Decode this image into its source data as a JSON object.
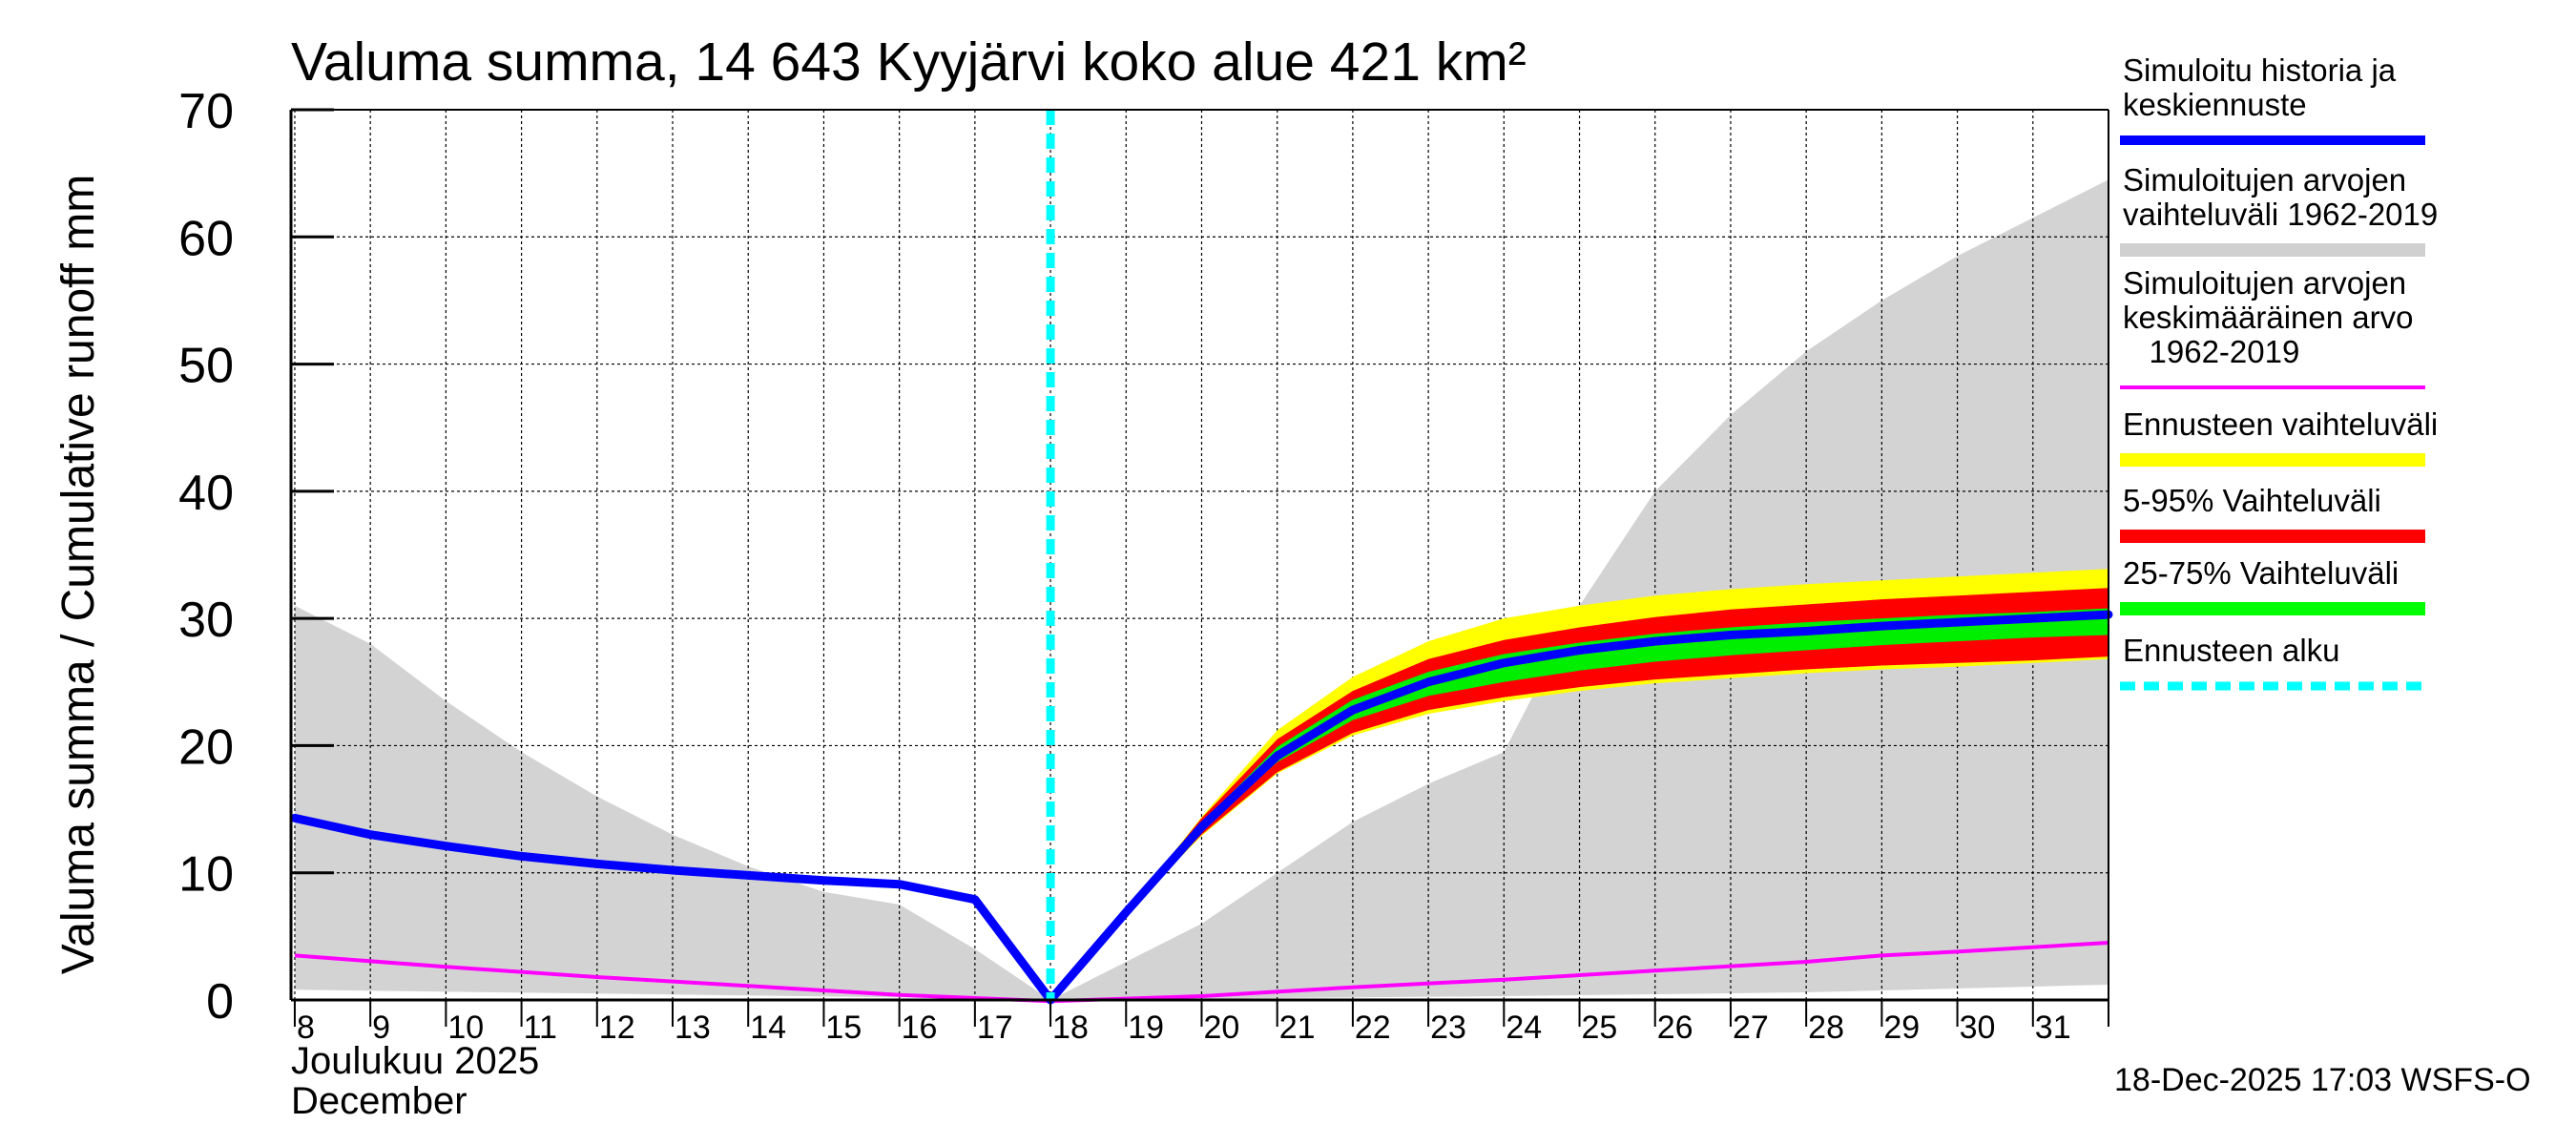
{
  "chart_data": {
    "type": "area",
    "title": "Valuma summa, 14 643 Kyyjärvi koko alue 421 km²",
    "ylabel": "Valuma summa / Cumulative runoff    mm",
    "ylim": [
      0,
      70
    ],
    "yticks": [
      0,
      10,
      20,
      30,
      40,
      50,
      60,
      70
    ],
    "xlim": [
      7.95,
      32
    ],
    "xticks": [
      8,
      9,
      10,
      11,
      12,
      13,
      14,
      15,
      16,
      17,
      18,
      19,
      20,
      21,
      22,
      23,
      24,
      25,
      26,
      27,
      28,
      29,
      30,
      31
    ],
    "xlabel_fi": "Joulukuu  2025",
    "xlabel_en": "December",
    "grid": true,
    "forecast_start_day": 18,
    "timestamp": "18-Dec-2025 17:03 WSFS-O",
    "series": {
      "sim_range_upper": {
        "x": [
          8,
          9,
          10,
          11,
          12,
          13,
          14,
          15,
          16,
          17,
          18,
          19,
          20,
          21,
          22,
          23,
          24,
          25,
          26,
          27,
          28,
          29,
          30,
          31,
          32
        ],
        "y": [
          31,
          28,
          23.5,
          19.5,
          16,
          13,
          10.5,
          8.5,
          7.5,
          4,
          0,
          3,
          6,
          10,
          14,
          17,
          19.5,
          31,
          40,
          46,
          51,
          55,
          58.5,
          61.5,
          64.5
        ]
      },
      "sim_range_lower": {
        "x": [
          8,
          12,
          16,
          18,
          20,
          24,
          28,
          32
        ],
        "y": [
          0.8,
          0.5,
          0.2,
          0,
          0.1,
          0.3,
          0.6,
          1.2
        ]
      },
      "sim_mean": {
        "x": [
          8,
          10,
          12,
          14,
          16,
          18,
          20,
          22,
          24,
          26,
          28,
          29,
          30,
          32
        ],
        "y": [
          3.5,
          2.6,
          1.8,
          1.1,
          0.4,
          -0.1,
          0.3,
          1.0,
          1.6,
          2.3,
          3.0,
          3.5,
          3.8,
          4.5
        ]
      },
      "history_and_forecast": {
        "x": [
          8,
          9,
          10,
          11,
          12,
          13,
          14,
          15,
          16,
          17,
          18,
          19,
          20,
          21,
          22,
          23,
          24,
          25,
          26,
          27,
          28,
          29,
          30,
          31,
          32
        ],
        "y": [
          14.3,
          13.0,
          12.1,
          11.3,
          10.7,
          10.2,
          9.8,
          9.4,
          9.1,
          7.9,
          0,
          6.9,
          13.6,
          19.2,
          22.8,
          25.0,
          26.5,
          27.5,
          28.2,
          28.7,
          29.0,
          29.4,
          29.7,
          30.0,
          30.3
        ]
      },
      "forecast_range": {
        "x": [
          19,
          20,
          21,
          22,
          23,
          24,
          25,
          26,
          27,
          28,
          29,
          30,
          31,
          32
        ],
        "lower": [
          6.9,
          12.9,
          17.8,
          20.8,
          22.5,
          23.5,
          24.3,
          24.9,
          25.3,
          25.7,
          26.0,
          26.2,
          26.5,
          26.8
        ],
        "upper": [
          6.9,
          14.4,
          21.2,
          25.4,
          28.2,
          30.0,
          31.0,
          31.8,
          32.3,
          32.7,
          33.0,
          33.3,
          33.6,
          33.9
        ]
      },
      "p5_95": {
        "x": [
          19,
          20,
          21,
          22,
          23,
          24,
          25,
          26,
          27,
          28,
          29,
          30,
          31,
          32
        ],
        "lower": [
          6.9,
          13.0,
          17.9,
          21.0,
          22.8,
          23.8,
          24.6,
          25.2,
          25.6,
          26.0,
          26.3,
          26.5,
          26.7,
          27.0
        ],
        "upper": [
          6.9,
          14.3,
          20.5,
          24.3,
          26.8,
          28.3,
          29.3,
          30.1,
          30.7,
          31.1,
          31.5,
          31.8,
          32.1,
          32.4
        ]
      },
      "p25_75": {
        "x": [
          19,
          20,
          21,
          22,
          23,
          24,
          25,
          26,
          27,
          28,
          29,
          30,
          31,
          32
        ],
        "lower": [
          6.9,
          13.4,
          18.7,
          22.0,
          23.9,
          25.0,
          25.9,
          26.6,
          27.1,
          27.5,
          27.9,
          28.2,
          28.5,
          28.7
        ],
        "upper": [
          6.9,
          13.9,
          19.9,
          23.6,
          25.8,
          27.2,
          28.1,
          28.8,
          29.3,
          29.7,
          30.0,
          30.3,
          30.5,
          30.8
        ]
      }
    },
    "legend": [
      {
        "label_lines": [
          "Simuloitu historia ja",
          "keskiennuste"
        ],
        "color": "#0000ff",
        "style": "line"
      },
      {
        "label_lines": [
          "Simuloitujen arvojen",
          "vaihteluväli 1962-2019"
        ],
        "color": "#d0d0d0",
        "style": "thick"
      },
      {
        "label_lines": [
          "Simuloitujen arvojen",
          "keskimääräinen arvo",
          "   1962-2019"
        ],
        "color": "#ff00ff",
        "style": "thin"
      },
      {
        "label_lines": [
          "Ennusteen vaihteluväli"
        ],
        "color": "#ffff00",
        "style": "thick"
      },
      {
        "label_lines": [
          "5-95% Vaihteluväli"
        ],
        "color": "#ff0000",
        "style": "thick"
      },
      {
        "label_lines": [
          "25-75% Vaihteluväli"
        ],
        "color": "#00ff00",
        "style": "thick"
      },
      {
        "label_lines": [
          "Ennusteen alku"
        ],
        "color": "#00ffff",
        "style": "dashed"
      }
    ]
  }
}
